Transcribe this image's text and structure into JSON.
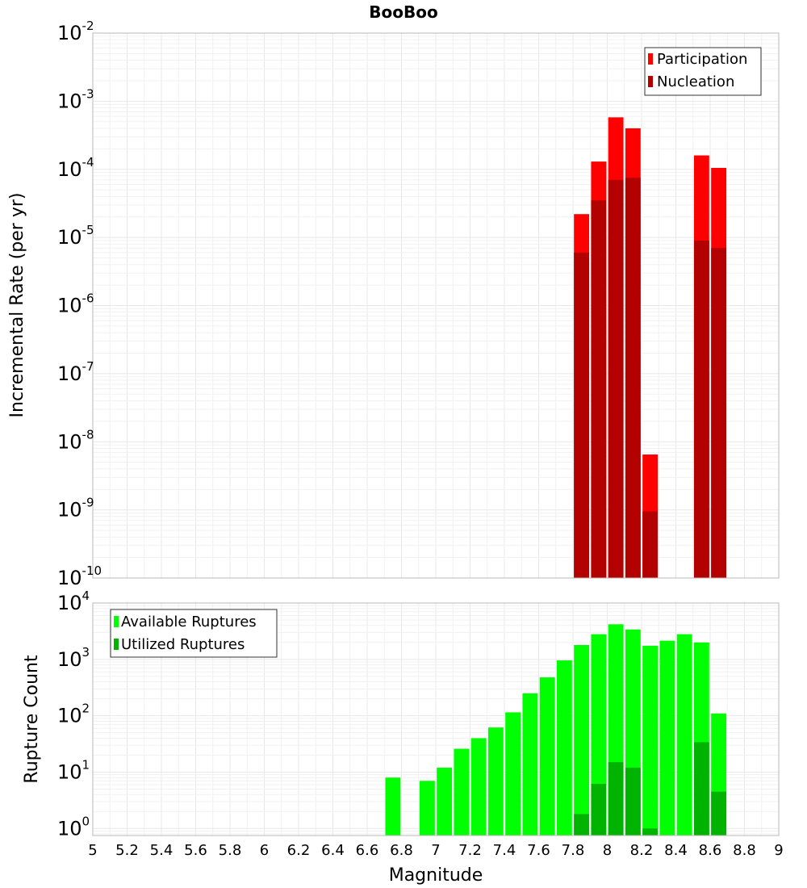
{
  "chart_data": [
    {
      "type": "bar",
      "title": "BooBoo",
      "xlabel": "Magnitude",
      "ylabel": "Incremental Rate (per yr)",
      "y_scale": "log",
      "xlim": [
        5,
        9
      ],
      "ylim": [
        1e-10,
        0.01
      ],
      "bar_width": 0.1,
      "grid": true,
      "legend_position": "top-right",
      "series": [
        {
          "name": "Participation",
          "color": "#ff0000",
          "x": [
            7.85,
            7.95,
            8.05,
            8.15,
            8.25,
            8.55,
            8.65
          ],
          "values": [
            2.2e-05,
            0.00013,
            0.00058,
            0.0004,
            6.5e-09,
            0.00016,
            0.000105
          ]
        },
        {
          "name": "Nucleation",
          "color": "#b30000",
          "x": [
            7.85,
            7.95,
            8.05,
            8.15,
            8.25,
            8.55,
            8.65
          ],
          "values": [
            6e-06,
            3.5e-05,
            7e-05,
            7.5e-05,
            9.5e-10,
            9e-06,
            7e-06
          ]
        }
      ]
    },
    {
      "type": "bar",
      "title": "",
      "xlabel": "Magnitude",
      "ylabel": "Rupture Count",
      "y_scale": "log",
      "xlim": [
        5,
        9
      ],
      "ylim": [
        0.75,
        10000
      ],
      "bar_width": 0.1,
      "grid": true,
      "legend_position": "top-left",
      "x_ticks": [
        "5",
        "5.2",
        "5.4",
        "5.6",
        "5.8",
        "6",
        "6.2",
        "6.4",
        "6.6",
        "6.8",
        "7",
        "7.2",
        "7.4",
        "7.6",
        "7.8",
        "8",
        "8.2",
        "8.4",
        "8.6",
        "8.8",
        "9"
      ],
      "series": [
        {
          "name": "Available Ruptures",
          "color": "#00ff00",
          "x": [
            6.75,
            6.95,
            7.05,
            7.15,
            7.25,
            7.35,
            7.45,
            7.55,
            7.65,
            7.75,
            7.85,
            7.95,
            8.05,
            8.15,
            8.25,
            8.35,
            8.45,
            8.55,
            8.65
          ],
          "values": [
            8,
            7,
            12,
            26,
            40,
            62,
            115,
            250,
            480,
            960,
            1800,
            2800,
            4200,
            3400,
            1750,
            2150,
            2800,
            2000,
            110
          ]
        },
        {
          "name": "Utilized Ruptures",
          "color": "#00b300",
          "x": [
            7.85,
            7.95,
            8.05,
            8.15,
            8.25,
            8.55,
            8.65
          ],
          "values": [
            1.8,
            6.2,
            15,
            12,
            1,
            34,
            4.5
          ]
        }
      ]
    }
  ]
}
